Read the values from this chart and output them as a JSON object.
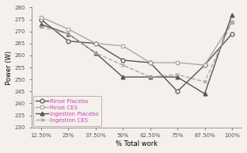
{
  "x_labels": [
    "12.50%",
    "25%",
    "37.50%",
    "50%",
    "62.50%",
    "75%",
    "87.50%",
    "100%"
  ],
  "x_values": [
    0,
    1,
    2,
    3,
    4,
    5,
    6,
    7
  ],
  "series": {
    "Rinse Placebo": [
      275,
      266,
      265,
      258,
      257,
      245,
      256,
      269
    ],
    "Rinse CES": [
      276,
      271,
      265,
      264,
      257,
      257,
      256,
      274
    ],
    "Ingestion Placebo": [
      273,
      269,
      261,
      251,
      251,
      251,
      244,
      277
    ],
    "Ingestion CES": [
      272,
      269,
      261,
      256,
      251,
      252,
      249,
      274
    ]
  },
  "line_styles": {
    "Rinse Placebo": {
      "color": "#555555",
      "ls": "-",
      "marker": "o",
      "lw": 1.0
    },
    "Rinse CES": {
      "color": "#aaaaaa",
      "ls": "-",
      "marker": "s",
      "lw": 1.0
    },
    "Ingestion Placebo": {
      "color": "#555555",
      "ls": "-",
      "marker": "^",
      "lw": 1.0
    },
    "Ingestion CES": {
      "color": "#aaaaaa",
      "ls": "--",
      "marker": "x",
      "lw": 1.0
    }
  },
  "ylabel": "Power (W)",
  "xlabel": "% Total work",
  "ylim": [
    230,
    280
  ],
  "yticks": [
    230,
    235,
    240,
    245,
    250,
    255,
    260,
    265,
    270,
    275,
    280
  ],
  "legend_labels": [
    "Rinse Placebo",
    "Rinse CES",
    "Ingestion Placebo",
    "Ingestion CES"
  ],
  "legend_text_color": "#CC44BB",
  "background_color": "#f5f0ec"
}
